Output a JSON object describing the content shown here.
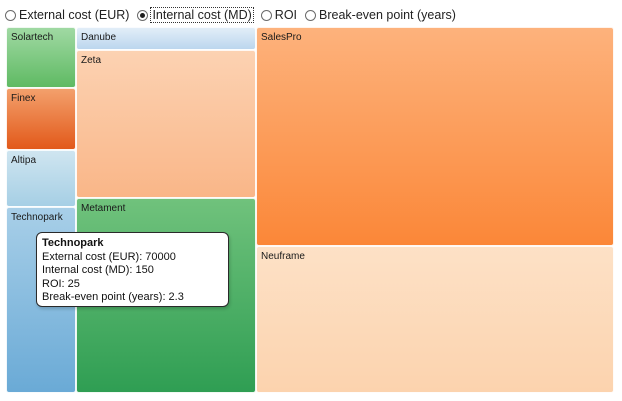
{
  "metric_selector": {
    "options": [
      {
        "label": "External cost (EUR)",
        "checked": false
      },
      {
        "label": "Internal cost (MD)",
        "checked": true
      },
      {
        "label": "ROI",
        "checked": false
      },
      {
        "label": "Break-even point (years)",
        "checked": false
      }
    ]
  },
  "treemap": {
    "tiles": [
      {
        "label": "Solartech",
        "color": "#6cc070"
      },
      {
        "label": "Finex",
        "color": "#e8661f"
      },
      {
        "label": "Altipa",
        "color": "#b2d6ea"
      },
      {
        "label": "Technopark",
        "color": "#7db7de"
      },
      {
        "label": "Danube",
        "color": "#cfe2f4"
      },
      {
        "label": "Zeta",
        "color": "#fbc49c"
      },
      {
        "label": "Metament",
        "color": "#40a95f"
      },
      {
        "label": "SalesPro",
        "color": "#fc9a52"
      },
      {
        "label": "Neuframe",
        "color": "#fdd9b8"
      }
    ]
  },
  "tooltip": {
    "title": "Technopark",
    "rows": [
      "External cost (EUR): 70000",
      "Internal cost (MD): 150",
      "ROI: 25",
      "Break-even point (years): 2.3"
    ]
  }
}
